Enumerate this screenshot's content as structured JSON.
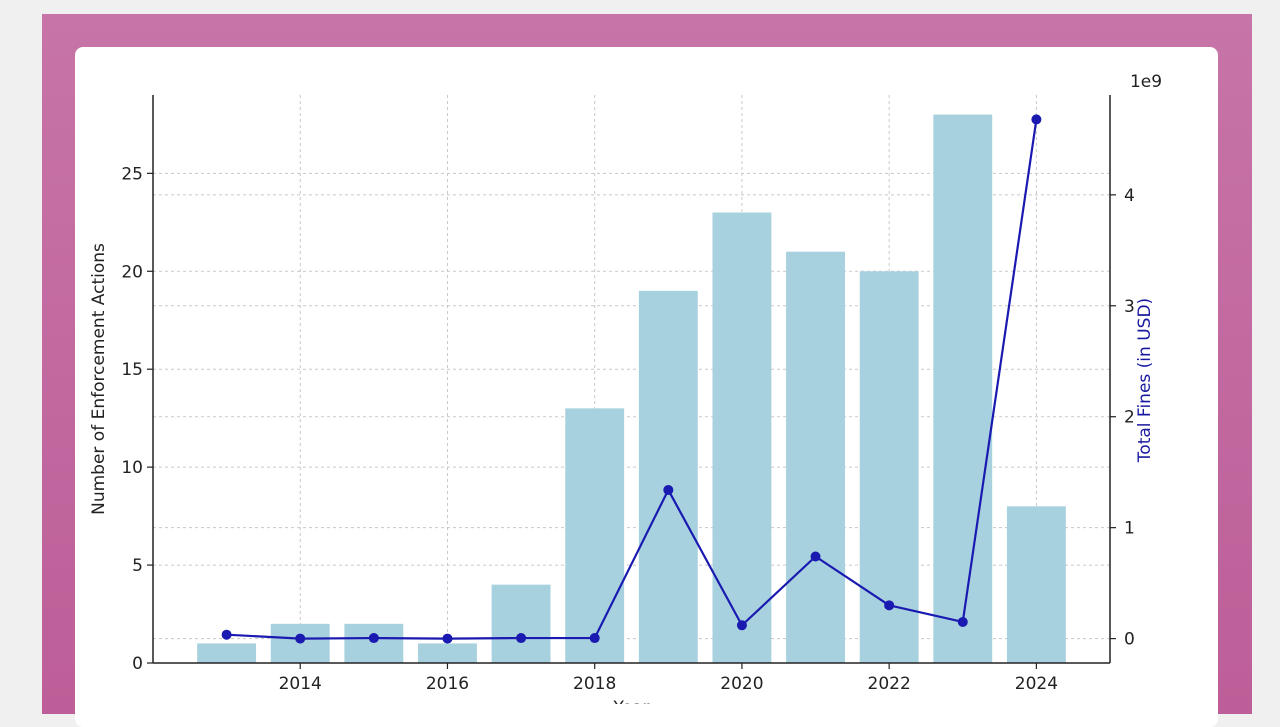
{
  "chart_data": {
    "type": "bar+line",
    "x": [
      2013,
      2014,
      2015,
      2016,
      2017,
      2018,
      2019,
      2020,
      2021,
      2022,
      2023,
      2024
    ],
    "x_tick_labels": [
      "2014",
      "2016",
      "2018",
      "2020",
      "2022",
      "2024"
    ],
    "x_ticks": [
      2014,
      2016,
      2018,
      2020,
      2022,
      2024
    ],
    "series": [
      {
        "name": "Number of Enforcement Actions",
        "type": "bar",
        "axis": "left",
        "color": "#a8d1e0",
        "values": [
          1,
          2,
          2,
          1,
          4,
          13,
          19,
          23,
          21,
          20,
          28,
          8
        ]
      },
      {
        "name": "Total Fines (in USD)",
        "type": "line",
        "axis": "right",
        "color": "#1a1ab0",
        "values": [
          35000000,
          0,
          5000000,
          0,
          5000000,
          5000000,
          1340000000,
          120000000,
          740000000,
          300000000,
          150000000,
          4680000000
        ]
      }
    ],
    "ylabel_left": "Number of Enforcement Actions",
    "ylabel_right": "Total Fines (in USD)",
    "xlabel": "Year",
    "ylim_left": [
      0,
      29
    ],
    "ylim_right": [
      -220000000.0,
      4900000000.0
    ],
    "left_ticks": [
      0,
      5,
      10,
      15,
      20,
      25
    ],
    "left_tick_labels": [
      "0",
      "5",
      "10",
      "15",
      "20",
      "25"
    ],
    "right_ticks": [
      0,
      1000000000.0,
      2000000000.0,
      3000000000.0,
      4000000000.0
    ],
    "right_tick_labels": [
      "0",
      "1",
      "2",
      "3",
      "4"
    ],
    "right_offset_label": "1e9",
    "xlim": [
      2012.0,
      2025.0
    ],
    "grid": true
  }
}
